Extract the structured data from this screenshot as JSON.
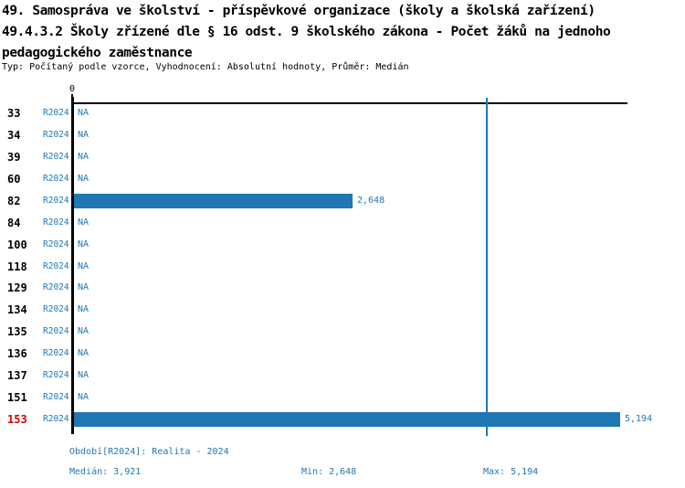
{
  "header": {
    "title_lines": [
      "49. Samospráva ve školství - příspěvkové organizace (školy a školská zařízení)",
      "49.4.3.2 Školy zřízené dle § 16 odst. 9 školského zákona - Počet žáků na jednoho",
      "pedagogického zaměstnance"
    ],
    "subtitle": "Typ: Počítaný podle vzorce, Vyhodnocení: Absolutní hodnoty, Průměr: Medián"
  },
  "chart_data": {
    "type": "bar",
    "orientation": "horizontal",
    "title": "49.4.3.2 Školy zřízené dle § 16 odst. 9 školského zákona - Počet žáků na jednoho pedagogického zaměstnance",
    "series_label": "R2024",
    "axis": {
      "zero_label": "0",
      "x_min": 0,
      "x_max": 5250,
      "grid": false
    },
    "rows": [
      {
        "id": "33",
        "period": "R2024",
        "value": null,
        "na_label": "NA",
        "highlighted": false
      },
      {
        "id": "34",
        "period": "R2024",
        "value": null,
        "na_label": "NA",
        "highlighted": false
      },
      {
        "id": "39",
        "period": "R2024",
        "value": null,
        "na_label": "NA",
        "highlighted": false
      },
      {
        "id": "60",
        "period": "R2024",
        "value": null,
        "na_label": "NA",
        "highlighted": false
      },
      {
        "id": "82",
        "period": "R2024",
        "value": 2648,
        "value_label": "2,648",
        "highlighted": false
      },
      {
        "id": "84",
        "period": "R2024",
        "value": null,
        "na_label": "NA",
        "highlighted": false
      },
      {
        "id": "100",
        "period": "R2024",
        "value": null,
        "na_label": "NA",
        "highlighted": false
      },
      {
        "id": "118",
        "period": "R2024",
        "value": null,
        "na_label": "NA",
        "highlighted": false
      },
      {
        "id": "129",
        "period": "R2024",
        "value": null,
        "na_label": "NA",
        "highlighted": false
      },
      {
        "id": "134",
        "period": "R2024",
        "value": null,
        "na_label": "NA",
        "highlighted": false
      },
      {
        "id": "135",
        "period": "R2024",
        "value": null,
        "na_label": "NA",
        "highlighted": false
      },
      {
        "id": "136",
        "period": "R2024",
        "value": null,
        "na_label": "NA",
        "highlighted": false
      },
      {
        "id": "137",
        "period": "R2024",
        "value": null,
        "na_label": "NA",
        "highlighted": false
      },
      {
        "id": "151",
        "period": "R2024",
        "value": null,
        "na_label": "NA",
        "highlighted": false
      },
      {
        "id": "153",
        "period": "R2024",
        "value": 5194,
        "value_label": "5,194",
        "highlighted": true
      }
    ],
    "median": 3921,
    "min": 2648,
    "max": 5194
  },
  "footer": {
    "period_line": "Období[R2024]: Realita - 2024",
    "median_label": "Medián: 3,921",
    "min_label": "Min: 2,648",
    "max_label": "Max: 5,194"
  },
  "colors": {
    "bar": "#1f77b4",
    "blue_text": "#1f77b4",
    "median_line": "#1f77b4",
    "highlight_red": "#d40000",
    "axis": "#000000"
  }
}
